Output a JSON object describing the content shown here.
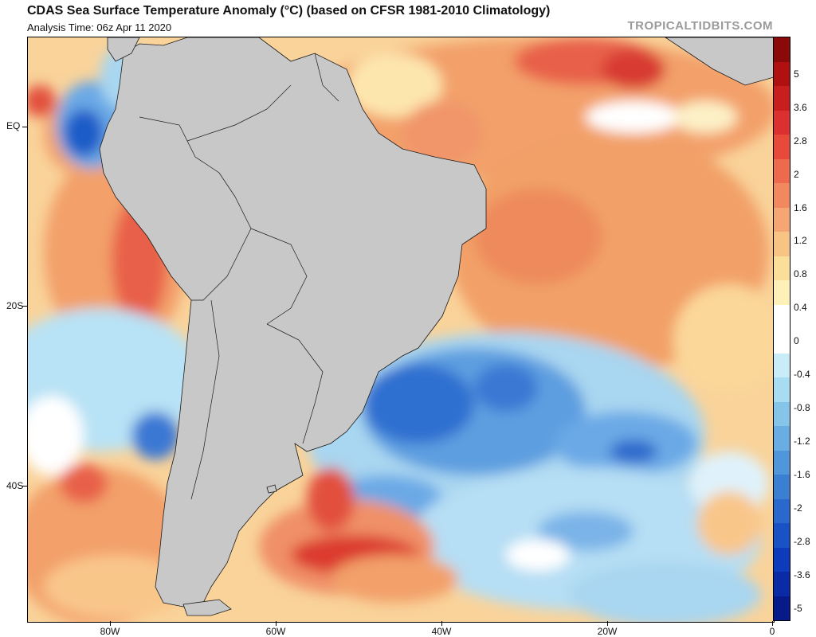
{
  "header": {
    "title": "CDAS Sea Surface Temperature Anomaly (°C) (based on CFSR 1981-2010 Climatology)",
    "subtitle": "Analysis Time: 06z Apr 11 2020",
    "site": "TROPICALTIDBITS.COM"
  },
  "axes": {
    "lat_labels": [
      "EQ",
      "20S",
      "40S"
    ],
    "lon_labels": [
      "80W",
      "60W",
      "40W",
      "20W",
      "0"
    ]
  },
  "colorbar": {
    "labels": [
      "5",
      "3.6",
      "2.8",
      "2",
      "1.6",
      "1.2",
      "0.8",
      "0.4",
      "0",
      "-0.4",
      "-0.8",
      "-1.2",
      "-1.6",
      "-2",
      "-2.8",
      "-3.6",
      "-5"
    ],
    "colors": [
      "#8a0a0a",
      "#b01010",
      "#c81e1e",
      "#dc3030",
      "#e84a3a",
      "#ee6a4c",
      "#f2885e",
      "#f5a673",
      "#f8c483",
      "#fbde98",
      "#fdf1b8",
      "#ffffff",
      "#ffffff",
      "#c8ecf8",
      "#a8dcf2",
      "#86c5ea",
      "#68aee2",
      "#4f96da",
      "#3a7fd2",
      "#2968cc",
      "#1852c4",
      "#0c3cbc",
      "#0a2aa6",
      "#061a8a"
    ]
  },
  "colors": {
    "land": "#c8c8c8",
    "land_border": "#1a1a1a",
    "warm_strong": "#dc3a2e",
    "warm": "#f3a06a",
    "warm_light": "#fbd79a",
    "cool_light": "#b8e2f5",
    "cool": "#6aa9e6",
    "cool_strong": "#1f5cc8"
  }
}
